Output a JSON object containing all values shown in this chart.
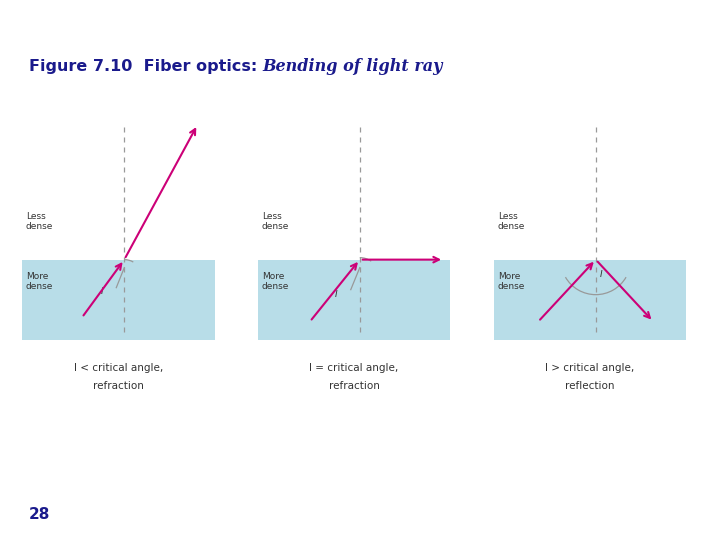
{
  "title_regular": "Figure 7.10  Fiber optics: ",
  "title_italic": "Bending of light ray",
  "title_color": "#1a1a8c",
  "title_fontsize": 11.5,
  "red_line_color": "#cc0000",
  "bg_color": "#ffffff",
  "box_color": "#b8dde8",
  "arrow_color": "#cc0077",
  "dashed_color": "#999999",
  "text_color": "#333333",
  "diagrams": [
    {
      "caption_line1": "I < critical angle,",
      "caption_line2": "refraction",
      "angle_type": "small"
    },
    {
      "caption_line1": "I = critical angle,",
      "caption_line2": "refraction",
      "angle_type": "critical"
    },
    {
      "caption_line1": "I > critical angle,",
      "caption_line2": "reflection",
      "angle_type": "large"
    }
  ],
  "page_number": "28"
}
